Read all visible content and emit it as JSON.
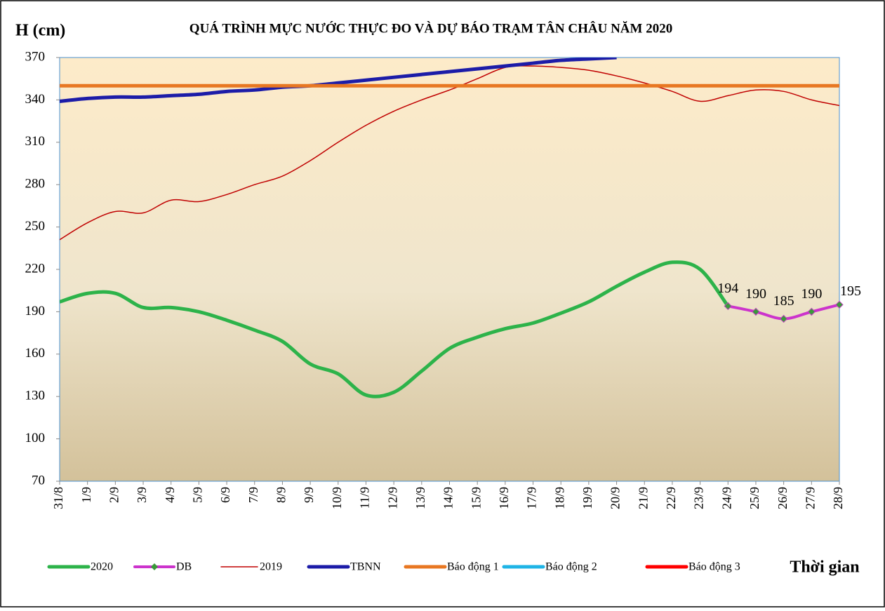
{
  "chart_data": {
    "type": "line",
    "title": "QUÁ TRÌNH MỰC NƯỚC THỰC ĐO VÀ DỰ BÁO TRẠM TÂN CHÂU NĂM 2020",
    "y_label": "H (cm)",
    "x_label": "Thời gian",
    "categories": [
      "31/8",
      "1/9",
      "2/9",
      "3/9",
      "4/9",
      "5/9",
      "6/9",
      "7/9",
      "8/9",
      "9/9",
      "10/9",
      "11/9",
      "12/9",
      "13/9",
      "14/9",
      "15/9",
      "16/9",
      "17/9",
      "18/9",
      "19/9",
      "20/9",
      "21/9",
      "22/9",
      "23/9",
      "24/9",
      "25/9",
      "26/9",
      "27/9",
      "28/9"
    ],
    "ylim": [
      70,
      370
    ],
    "yticks": [
      70,
      100,
      130,
      160,
      190,
      220,
      250,
      280,
      310,
      340,
      370
    ],
    "series": [
      {
        "name": "2020",
        "color": "#2db34a",
        "values": [
          197,
          203,
          203,
          193,
          193,
          190,
          184,
          177,
          169,
          153,
          146,
          131,
          133,
          148,
          164,
          172,
          178,
          182,
          189,
          197,
          208,
          218,
          225,
          220,
          194,
          null,
          null,
          null,
          null
        ]
      },
      {
        "name": "DB",
        "color": "#cc33cc",
        "marker_color": "#3a9a3a",
        "values": [
          null,
          null,
          null,
          null,
          null,
          null,
          null,
          null,
          null,
          null,
          null,
          null,
          null,
          null,
          null,
          null,
          null,
          null,
          null,
          null,
          null,
          null,
          null,
          null,
          194,
          190,
          185,
          190,
          195
        ]
      },
      {
        "name": "2019",
        "color": "#c00000",
        "values": [
          241,
          253,
          261,
          260,
          269,
          268,
          273,
          280,
          286,
          297,
          310,
          322,
          332,
          340,
          347,
          355,
          363,
          364,
          363,
          361,
          357,
          352,
          346,
          339,
          343,
          347,
          346,
          340,
          336
        ]
      },
      {
        "name": "TBNN",
        "color": "#1c1ca8",
        "values": [
          339,
          341,
          342,
          342,
          343,
          344,
          346,
          347,
          349,
          350,
          352,
          354,
          356,
          358,
          360,
          362,
          364,
          366,
          368,
          369,
          370,
          null,
          null,
          null,
          null,
          null,
          null,
          null,
          null
        ]
      },
      {
        "name": "Báo động 1",
        "color": "#e87722",
        "value": 350
      },
      {
        "name": "Báo động 2",
        "color": "#1fb4e6"
      },
      {
        "name": "Báo động 3",
        "color": "#ff0000"
      }
    ]
  }
}
